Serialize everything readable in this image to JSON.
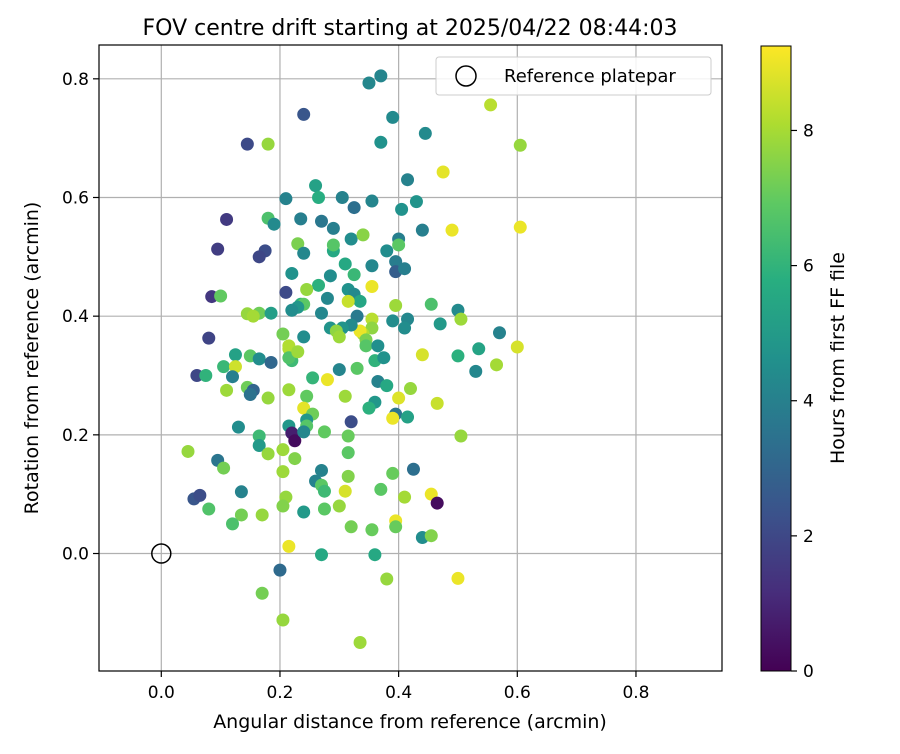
{
  "chart_data": {
    "type": "scatter",
    "title": "FOV centre drift starting at 2025/04/22 08:44:03",
    "xlabel": "Angular distance from reference (arcmin)",
    "ylabel": "Rotation from reference (arcmin)",
    "xlim": [
      -0.105,
      0.945
    ],
    "ylim": [
      -0.198,
      0.857
    ],
    "x_ticks": [
      0.0,
      0.2,
      0.4,
      0.6,
      0.8
    ],
    "x_tick_labels": [
      "0.0",
      "0.2",
      "0.4",
      "0.6",
      "0.8"
    ],
    "y_ticks": [
      0.0,
      0.2,
      0.4,
      0.6,
      0.8
    ],
    "y_tick_labels": [
      "0.0",
      "0.2",
      "0.4",
      "0.6",
      "0.8"
    ],
    "grid": true,
    "legend": {
      "position": "top-right",
      "entries": [
        "Reference platepar"
      ]
    },
    "reference_point": {
      "x": 0.0,
      "y": 0.0
    },
    "colorbar": {
      "label": "Hours from first FF file",
      "range": [
        0,
        9.25
      ],
      "colormap": "viridis",
      "ticks": [
        0,
        2,
        4,
        6,
        8
      ],
      "tick_labels": [
        "0",
        "2",
        "4",
        "6",
        "8"
      ]
    },
    "points": [
      [
        0.37,
        0.805,
        4.2
      ],
      [
        0.35,
        0.793,
        4.3
      ],
      [
        0.24,
        0.74,
        2.5
      ],
      [
        0.39,
        0.735,
        4.4
      ],
      [
        0.555,
        0.756,
        8.3
      ],
      [
        0.145,
        0.69,
        2.1
      ],
      [
        0.18,
        0.69,
        7.8
      ],
      [
        0.37,
        0.693,
        4.7
      ],
      [
        0.445,
        0.708,
        4.4
      ],
      [
        0.605,
        0.688,
        7.8
      ],
      [
        0.475,
        0.643,
        8.9
      ],
      [
        0.415,
        0.63,
        4.1
      ],
      [
        0.21,
        0.598,
        4.1
      ],
      [
        0.26,
        0.62,
        5.3
      ],
      [
        0.265,
        0.6,
        5.8
      ],
      [
        0.305,
        0.6,
        4.1
      ],
      [
        0.355,
        0.594,
        4.2
      ],
      [
        0.325,
        0.583,
        3.4
      ],
      [
        0.43,
        0.593,
        4.8
      ],
      [
        0.405,
        0.58,
        4.7
      ],
      [
        0.11,
        0.563,
        1.6
      ],
      [
        0.18,
        0.565,
        6.6
      ],
      [
        0.235,
        0.564,
        4.0
      ],
      [
        0.27,
        0.56,
        3.7
      ],
      [
        0.29,
        0.548,
        4.0
      ],
      [
        0.19,
        0.555,
        4.4
      ],
      [
        0.44,
        0.545,
        4.0
      ],
      [
        0.49,
        0.545,
        9.0
      ],
      [
        0.605,
        0.55,
        9.0
      ],
      [
        0.095,
        0.513,
        1.7
      ],
      [
        0.175,
        0.51,
        2.2
      ],
      [
        0.165,
        0.5,
        2.0
      ],
      [
        0.23,
        0.522,
        7.4
      ],
      [
        0.29,
        0.51,
        5.6
      ],
      [
        0.29,
        0.52,
        6.8
      ],
      [
        0.32,
        0.53,
        4.5
      ],
      [
        0.34,
        0.537,
        7.6
      ],
      [
        0.38,
        0.51,
        4.5
      ],
      [
        0.4,
        0.53,
        4.0
      ],
      [
        0.4,
        0.52,
        6.9
      ],
      [
        0.24,
        0.506,
        4.3
      ],
      [
        0.31,
        0.488,
        5.6
      ],
      [
        0.355,
        0.485,
        4.3
      ],
      [
        0.395,
        0.492,
        3.9
      ],
      [
        0.395,
        0.475,
        2.8
      ],
      [
        0.41,
        0.48,
        4.0
      ],
      [
        0.22,
        0.472,
        4.7
      ],
      [
        0.285,
        0.468,
        4.5
      ],
      [
        0.325,
        0.47,
        6.2
      ],
      [
        0.355,
        0.45,
        9.0
      ],
      [
        0.265,
        0.452,
        5.9
      ],
      [
        0.315,
        0.445,
        4.7
      ],
      [
        0.245,
        0.445,
        7.8
      ],
      [
        0.21,
        0.44,
        2.1
      ],
      [
        0.085,
        0.433,
        1.5
      ],
      [
        0.1,
        0.434,
        7.0
      ],
      [
        0.325,
        0.437,
        4.4
      ],
      [
        0.28,
        0.43,
        4.3
      ],
      [
        0.335,
        0.425,
        5.5
      ],
      [
        0.315,
        0.425,
        8.5
      ],
      [
        0.235,
        0.42,
        5.9
      ],
      [
        0.24,
        0.42,
        6.9
      ],
      [
        0.23,
        0.415,
        4.9
      ],
      [
        0.22,
        0.41,
        4.5
      ],
      [
        0.145,
        0.404,
        7.8
      ],
      [
        0.165,
        0.405,
        7.2
      ],
      [
        0.155,
        0.4,
        8.0
      ],
      [
        0.185,
        0.405,
        5.2
      ],
      [
        0.27,
        0.405,
        4.3
      ],
      [
        0.33,
        0.4,
        3.8
      ],
      [
        0.395,
        0.418,
        7.9
      ],
      [
        0.455,
        0.42,
        6.6
      ],
      [
        0.5,
        0.41,
        4.4
      ],
      [
        0.505,
        0.395,
        7.9
      ],
      [
        0.415,
        0.395,
        4.3
      ],
      [
        0.41,
        0.38,
        4.5
      ],
      [
        0.39,
        0.392,
        4.5
      ],
      [
        0.47,
        0.387,
        5.0
      ],
      [
        0.355,
        0.395,
        8.3
      ],
      [
        0.355,
        0.38,
        7.7
      ],
      [
        0.34,
        0.37,
        8.2
      ],
      [
        0.335,
        0.375,
        9.0
      ],
      [
        0.32,
        0.385,
        4.4
      ],
      [
        0.305,
        0.38,
        4.8
      ],
      [
        0.285,
        0.38,
        4.8
      ],
      [
        0.295,
        0.375,
        7.7
      ],
      [
        0.3,
        0.365,
        7.9
      ],
      [
        0.24,
        0.365,
        4.5
      ],
      [
        0.205,
        0.37,
        7.3
      ],
      [
        0.215,
        0.35,
        8.2
      ],
      [
        0.08,
        0.363,
        1.9
      ],
      [
        0.345,
        0.36,
        7.4
      ],
      [
        0.345,
        0.35,
        6.8
      ],
      [
        0.365,
        0.35,
        4.6
      ],
      [
        0.215,
        0.345,
        8.2
      ],
      [
        0.44,
        0.335,
        8.7
      ],
      [
        0.5,
        0.333,
        5.9
      ],
      [
        0.535,
        0.345,
        5.4
      ],
      [
        0.57,
        0.372,
        4.1
      ],
      [
        0.6,
        0.348,
        8.7
      ],
      [
        0.565,
        0.318,
        8.0
      ],
      [
        0.53,
        0.307,
        4.3
      ],
      [
        0.125,
        0.335,
        5.3
      ],
      [
        0.15,
        0.333,
        6.9
      ],
      [
        0.165,
        0.328,
        4.5
      ],
      [
        0.185,
        0.322,
        3.1
      ],
      [
        0.22,
        0.325,
        6.3
      ],
      [
        0.215,
        0.33,
        6.7
      ],
      [
        0.23,
        0.34,
        7.9
      ],
      [
        0.3,
        0.31,
        4.2
      ],
      [
        0.33,
        0.312,
        6.9
      ],
      [
        0.36,
        0.325,
        6.0
      ],
      [
        0.375,
        0.33,
        4.7
      ],
      [
        0.105,
        0.315,
        6.2
      ],
      [
        0.125,
        0.315,
        8.6
      ],
      [
        0.06,
        0.3,
        2.0
      ],
      [
        0.075,
        0.3,
        6.0
      ],
      [
        0.12,
        0.298,
        4.0
      ],
      [
        0.255,
        0.296,
        6.1
      ],
      [
        0.28,
        0.293,
        9.0
      ],
      [
        0.365,
        0.29,
        4.1
      ],
      [
        0.38,
        0.283,
        5.6
      ],
      [
        0.42,
        0.278,
        7.8
      ],
      [
        0.145,
        0.28,
        7.2
      ],
      [
        0.155,
        0.275,
        3.0
      ],
      [
        0.15,
        0.268,
        3.5
      ],
      [
        0.11,
        0.275,
        7.9
      ],
      [
        0.215,
        0.276,
        7.9
      ],
      [
        0.31,
        0.265,
        7.9
      ],
      [
        0.245,
        0.265,
        7.0
      ],
      [
        0.4,
        0.262,
        8.8
      ],
      [
        0.465,
        0.253,
        8.5
      ],
      [
        0.36,
        0.255,
        4.9
      ],
      [
        0.18,
        0.262,
        7.8
      ],
      [
        0.35,
        0.245,
        5.9
      ],
      [
        0.24,
        0.245,
        8.9
      ],
      [
        0.255,
        0.235,
        7.2
      ],
      [
        0.395,
        0.235,
        3.6
      ],
      [
        0.415,
        0.23,
        5.3
      ],
      [
        0.39,
        0.228,
        9.0
      ],
      [
        0.245,
        0.225,
        4.9
      ],
      [
        0.245,
        0.215,
        6.8
      ],
      [
        0.32,
        0.222,
        2.2
      ],
      [
        0.13,
        0.213,
        4.5
      ],
      [
        0.215,
        0.215,
        4.9
      ],
      [
        0.22,
        0.203,
        0.8
      ],
      [
        0.225,
        0.19,
        0.3
      ],
      [
        0.24,
        0.205,
        4.3
      ],
      [
        0.275,
        0.205,
        7.0
      ],
      [
        0.315,
        0.198,
        7.1
      ],
      [
        0.505,
        0.198,
        7.8
      ],
      [
        0.165,
        0.198,
        6.3
      ],
      [
        0.165,
        0.182,
        5.0
      ],
      [
        0.045,
        0.172,
        7.8
      ],
      [
        0.18,
        0.168,
        7.8
      ],
      [
        0.205,
        0.175,
        7.9
      ],
      [
        0.225,
        0.16,
        7.5
      ],
      [
        0.315,
        0.17,
        6.9
      ],
      [
        0.095,
        0.157,
        3.6
      ],
      [
        0.105,
        0.144,
        7.3
      ],
      [
        0.205,
        0.138,
        7.9
      ],
      [
        0.27,
        0.14,
        4.1
      ],
      [
        0.315,
        0.13,
        7.5
      ],
      [
        0.39,
        0.135,
        7.1
      ],
      [
        0.425,
        0.142,
        3.4
      ],
      [
        0.26,
        0.122,
        4.1
      ],
      [
        0.27,
        0.115,
        6.9
      ],
      [
        0.275,
        0.105,
        6.3
      ],
      [
        0.31,
        0.105,
        8.7
      ],
      [
        0.37,
        0.108,
        6.9
      ],
      [
        0.135,
        0.104,
        4.1
      ],
      [
        0.41,
        0.095,
        8.0
      ],
      [
        0.455,
        0.1,
        9.0
      ],
      [
        0.465,
        0.085,
        0.3
      ],
      [
        0.055,
        0.092,
        2.5
      ],
      [
        0.065,
        0.098,
        2.2
      ],
      [
        0.21,
        0.095,
        7.8
      ],
      [
        0.205,
        0.08,
        7.5
      ],
      [
        0.24,
        0.07,
        5.0
      ],
      [
        0.275,
        0.075,
        6.9
      ],
      [
        0.3,
        0.08,
        7.8
      ],
      [
        0.08,
        0.075,
        6.7
      ],
      [
        0.135,
        0.065,
        7.3
      ],
      [
        0.17,
        0.065,
        7.8
      ],
      [
        0.12,
        0.05,
        6.6
      ],
      [
        0.32,
        0.045,
        7.3
      ],
      [
        0.355,
        0.04,
        7.1
      ],
      [
        0.395,
        0.055,
        9.0
      ],
      [
        0.395,
        0.045,
        7.1
      ],
      [
        0.44,
        0.027,
        4.5
      ],
      [
        0.455,
        0.03,
        7.5
      ],
      [
        0.215,
        0.012,
        9.0
      ],
      [
        0.27,
        -0.002,
        5.6
      ],
      [
        0.36,
        -0.002,
        5.6
      ],
      [
        0.2,
        -0.028,
        3.2
      ],
      [
        0.38,
        -0.043,
        7.8
      ],
      [
        0.5,
        -0.042,
        9.0
      ],
      [
        0.17,
        -0.067,
        7.3
      ],
      [
        0.205,
        -0.112,
        7.8
      ],
      [
        0.335,
        -0.15,
        7.9
      ]
    ]
  }
}
